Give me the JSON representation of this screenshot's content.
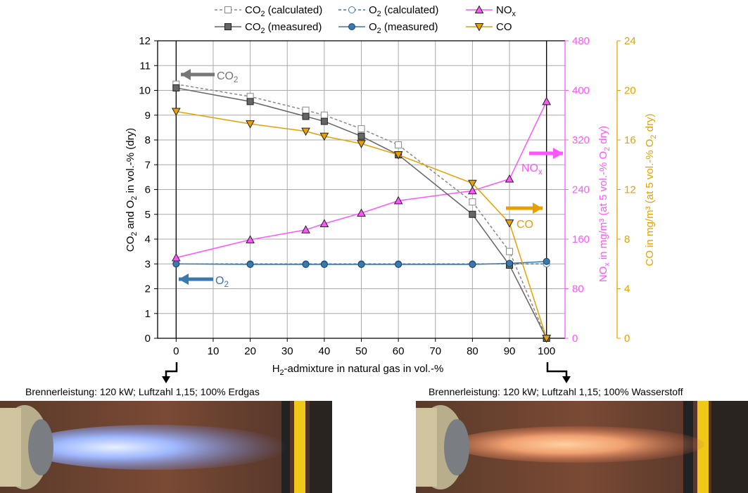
{
  "chart_data": {
    "type": "line",
    "xlabel": "H2-admixture in natural gas in vol.-%",
    "xlabel_parts": {
      "pre": "H",
      "sub": "2",
      "post": "-admixture in natural gas in vol.-%"
    },
    "xlim": [
      -5,
      105
    ],
    "xticks": [
      0,
      10,
      20,
      30,
      40,
      50,
      60,
      70,
      80,
      90,
      100
    ],
    "grid": true,
    "legend_position": "top",
    "axes": {
      "left": {
        "label": "CO2 and O2 in vol.-% (dry)",
        "ylim": [
          0,
          12
        ],
        "ticks": [
          0,
          1,
          2,
          3,
          4,
          5,
          6,
          7,
          8,
          9,
          10,
          11,
          12
        ],
        "color": "#000000"
      },
      "right1": {
        "label": "NOx in mg/m³ (at 5 vol.-% O2 dry)",
        "ylim": [
          0,
          480
        ],
        "ticks": [
          0,
          80,
          160,
          240,
          320,
          400,
          480
        ],
        "color": "#ff55ff"
      },
      "right2": {
        "label": "CO in mg/m³ (at 5 vol.-% O2 dry)",
        "ylim": [
          0,
          24
        ],
        "ticks": [
          0,
          4,
          8,
          12,
          16,
          20,
          24
        ],
        "color": "#e8a000"
      }
    },
    "series": [
      {
        "name": "CO2 (calculated)",
        "axis": "left",
        "color": "#888888",
        "dash": true,
        "marker": "square-open",
        "x": [
          0,
          20,
          35,
          40,
          50,
          60,
          80,
          90,
          100
        ],
        "values": [
          10.25,
          9.75,
          9.2,
          9.0,
          8.45,
          7.8,
          5.5,
          3.5,
          0
        ]
      },
      {
        "name": "O2 (calculated)",
        "axis": "left",
        "color": "#3a78b0",
        "dash": true,
        "marker": "circle-open",
        "x": [
          0,
          20,
          35,
          40,
          50,
          60,
          80,
          90,
          100
        ],
        "values": [
          3.0,
          3.0,
          3.0,
          3.0,
          3.0,
          3.0,
          3.0,
          3.0,
          3.0
        ]
      },
      {
        "name": "NOx",
        "axis": "right1",
        "color": "#ff55ff",
        "dash": false,
        "marker": "triangle-up",
        "x": [
          0,
          20,
          35,
          40,
          50,
          60,
          80,
          90,
          100
        ],
        "values": [
          130,
          159,
          175,
          185,
          202,
          222,
          238,
          257,
          382
        ]
      },
      {
        "name": "CO2 (measured)",
        "axis": "left",
        "color": "#666666",
        "dash": false,
        "marker": "square-filled",
        "x": [
          0,
          20,
          35,
          40,
          50,
          60,
          80,
          90,
          100
        ],
        "values": [
          10.1,
          9.55,
          8.95,
          8.75,
          8.15,
          7.4,
          5.0,
          2.95,
          0
        ]
      },
      {
        "name": "O2 (measured)",
        "axis": "left",
        "color": "#3a78b0",
        "dash": false,
        "marker": "circle-filled",
        "x": [
          0,
          20,
          35,
          40,
          50,
          60,
          80,
          90,
          100
        ],
        "values": [
          3.0,
          2.98,
          2.98,
          2.98,
          2.98,
          2.98,
          2.98,
          3.02,
          3.1
        ]
      },
      {
        "name": "CO",
        "axis": "right2",
        "color": "#e8a000",
        "dash": false,
        "marker": "triangle-down",
        "x": [
          0,
          20,
          35,
          40,
          50,
          60,
          80,
          90,
          100
        ],
        "values": [
          18.3,
          17.3,
          16.7,
          16.3,
          15.7,
          14.8,
          12.5,
          9.3,
          0
        ]
      }
    ],
    "legend": [
      {
        "series": 0,
        "pre": "CO",
        "sub": "2",
        "post": " (calculated)"
      },
      {
        "series": 1,
        "pre": "O",
        "sub": "2",
        "post": " (calculated)"
      },
      {
        "series": 2,
        "pre": "NO",
        "sub": "x",
        "post": ""
      },
      {
        "series": 3,
        "pre": "CO",
        "sub": "2",
        "post": " (measured)"
      },
      {
        "series": 4,
        "pre": "O",
        "sub": "2",
        "post": " (measured)"
      },
      {
        "series": 5,
        "pre": "CO",
        "sub": "",
        "post": ""
      }
    ],
    "annotations": [
      {
        "pre": "CO",
        "sub": "2",
        "color": "#777777",
        "arrow": "left"
      },
      {
        "pre": "O",
        "sub": "2",
        "color": "#3a78b0",
        "arrow": "left"
      },
      {
        "pre": "NO",
        "sub": "x",
        "color": "#ff55ff",
        "arrow": "right"
      },
      {
        "pre": "CO",
        "sub": "",
        "color": "#e8a000",
        "arrow": "right"
      }
    ]
  },
  "captions": {
    "left": "Brennerleistung: 120 kW; Luftzahl 1,15; 100% Erdgas",
    "right": "Brennerleistung: 120 kW; Luftzahl 1,15; 100% Wasserstoff"
  },
  "photos": {
    "left": {
      "flame_color": "#8fb0ff",
      "description_color": "blue"
    },
    "right": {
      "flame_color": "#f0a070",
      "description_color": "orange"
    }
  }
}
